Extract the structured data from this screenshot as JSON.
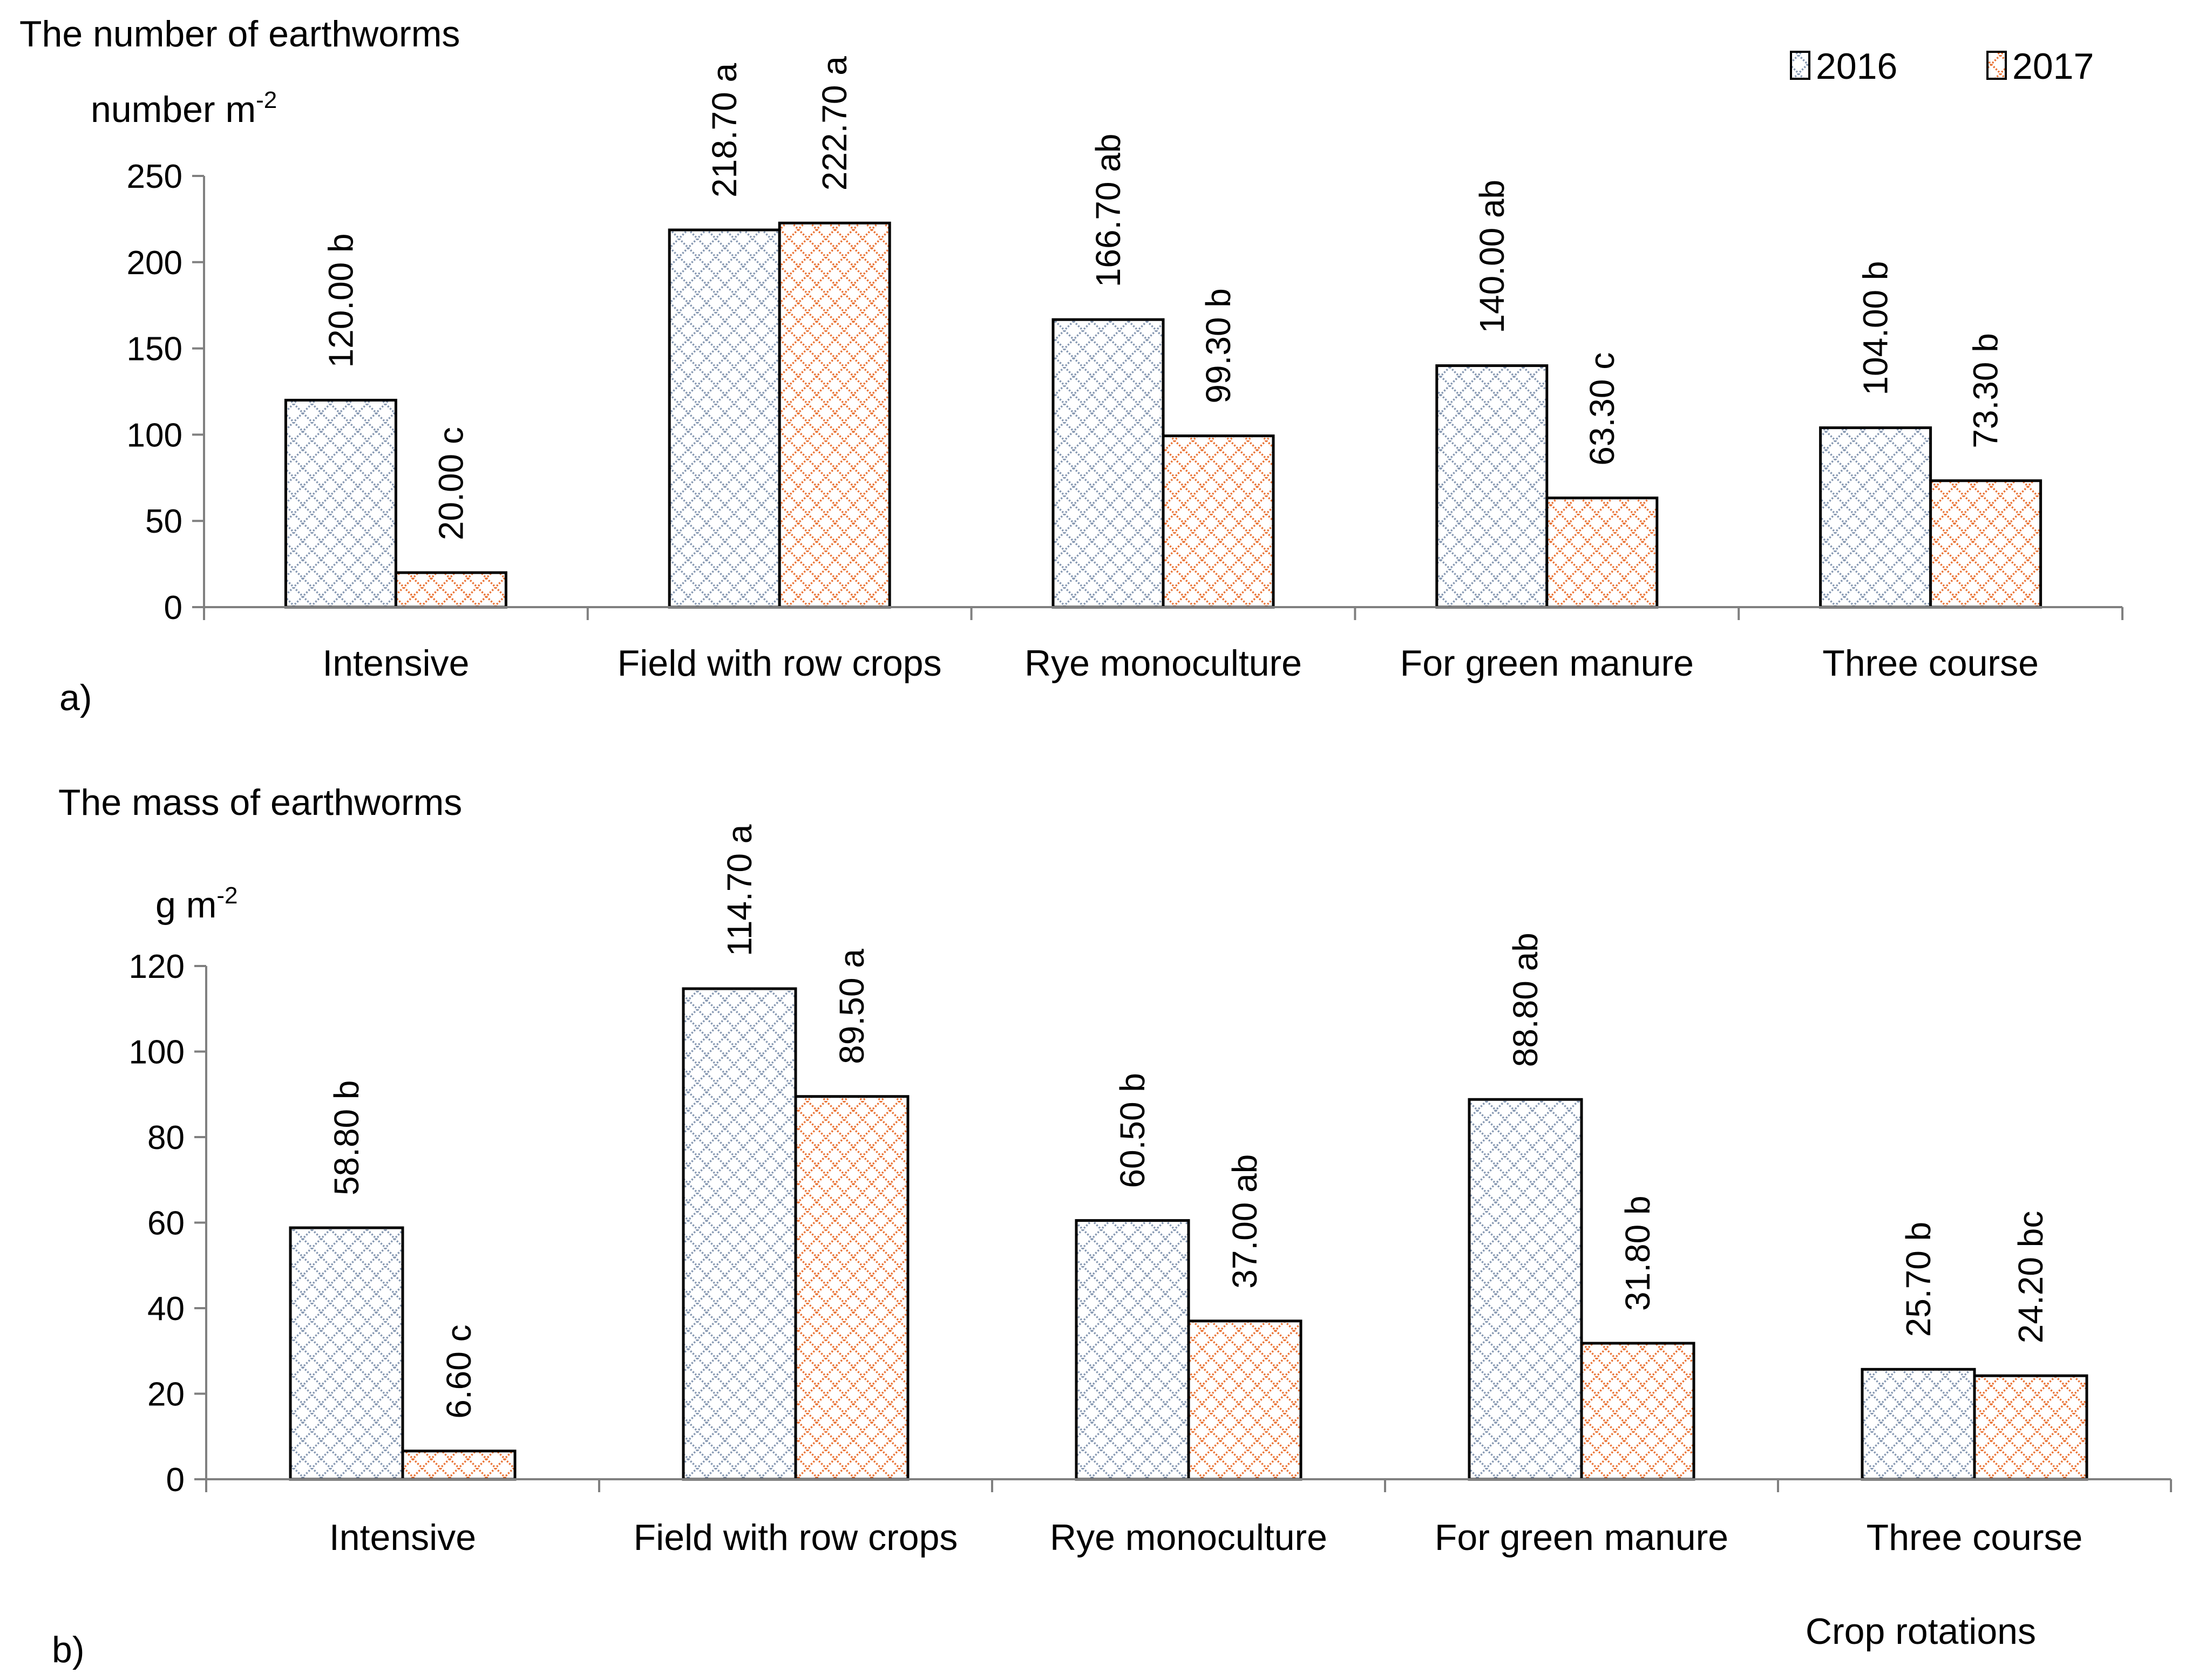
{
  "chart_data": [
    {
      "type": "bar",
      "panel_label": "a)",
      "title": "The number of earthworms",
      "ylabel_base": "number m",
      "ylabel_sup": "-2",
      "categories": [
        "Intensive",
        "Field with row crops",
        "Rye monoculture",
        "For green manure",
        "Three course"
      ],
      "ylim": [
        0,
        250
      ],
      "yticks": [
        0,
        50,
        100,
        150,
        200,
        250
      ],
      "series": [
        {
          "name": "2016",
          "values": [
            120.0,
            218.7,
            166.7,
            140.0,
            104.0
          ],
          "labels": [
            "120.00 b",
            "218.70 a",
            "166.70 ab",
            "140.00 ab",
            "104.00 b"
          ]
        },
        {
          "name": "2017",
          "values": [
            20.0,
            222.7,
            99.3,
            63.3,
            73.3
          ],
          "labels": [
            "20.00 c",
            "222.70 a",
            "99.30 b",
            "63.30 c",
            "73.30 b"
          ]
        }
      ],
      "legend_position": "top-right",
      "grid": false
    },
    {
      "type": "bar",
      "panel_label": "b)",
      "title": "The mass of earthworms",
      "ylabel_base": "g m",
      "ylabel_sup": "-2",
      "xlabel": "Crop rotations",
      "categories": [
        "Intensive",
        "Field with row crops",
        "Rye monoculture",
        "For green manure",
        "Three course"
      ],
      "ylim": [
        0,
        120
      ],
      "yticks": [
        0,
        20,
        40,
        60,
        80,
        100,
        120
      ],
      "series": [
        {
          "name": "2016",
          "values": [
            58.8,
            114.7,
            60.5,
            88.8,
            25.7
          ],
          "labels": [
            "58.80 b",
            "114.70 a",
            "60.50 b",
            "88.80 ab",
            "25.70 b"
          ]
        },
        {
          "name": "2017",
          "values": [
            6.6,
            89.5,
            37.0,
            31.8,
            24.2
          ],
          "labels": [
            "6.60 c",
            "89.50 a",
            "37.00 ab",
            "31.80 b",
            "24.20 bc"
          ]
        }
      ],
      "grid": false
    }
  ],
  "colors": {
    "series_2016": "#8496b0",
    "series_2017": "#e97132",
    "axis": "#808080"
  }
}
